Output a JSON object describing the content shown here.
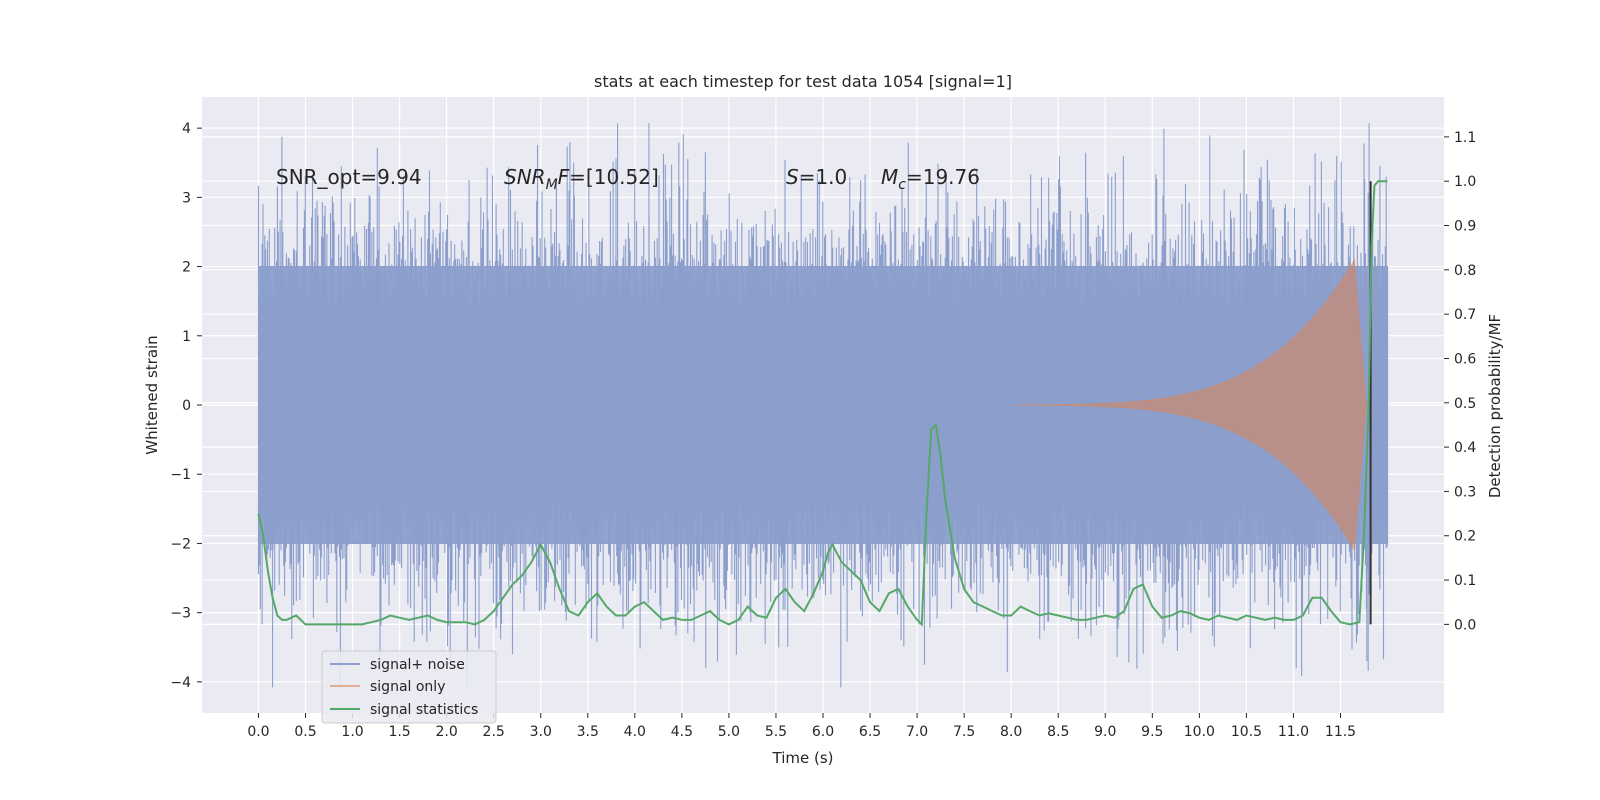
{
  "chart_data": {
    "type": "line",
    "title": "stats at each timestep for test data 1054 [signal=1]",
    "xlabel": "Time (s)",
    "ylabel_left": "Whitened strain",
    "ylabel_right": "Detection probability/MF",
    "xlim": [
      -0.6,
      12.6
    ],
    "ylim_left": [
      -4.45,
      4.45
    ],
    "ylim_right": [
      -0.2,
      1.19
    ],
    "x_ticks": [
      "0.0",
      "0.5",
      "1.0",
      "1.5",
      "2.0",
      "2.5",
      "3.0",
      "3.5",
      "4.0",
      "4.5",
      "5.0",
      "5.5",
      "6.0",
      "6.5",
      "7.0",
      "7.5",
      "8.0",
      "8.5",
      "9.0",
      "9.5",
      "10.0",
      "10.5",
      "11.0",
      "11.5"
    ],
    "y_left_ticks": [
      "4",
      "3",
      "2",
      "1",
      "0",
      "−1",
      "−2",
      "−3",
      "−4"
    ],
    "y_right_ticks": [
      "1.1",
      "1.0",
      "0.9",
      "0.8",
      "0.7",
      "0.6",
      "0.5",
      "0.4",
      "0.3",
      "0.2",
      "0.1",
      "0.0"
    ],
    "grid": true,
    "legend_placement": "lower-left",
    "colors": {
      "signal_noise": "#8c9fcc",
      "signal_only": "#dd8452",
      "signal_statistics": "#55a868",
      "marker_line": "#333333"
    },
    "series": [
      {
        "name": "signal+ noise",
        "axis": "left",
        "x_range": [
          0.0,
          12.0
        ],
        "typical_range": [
          -2.0,
          2.0
        ],
        "max": 4.07,
        "min": -4.08
      },
      {
        "name": "signal only",
        "axis": "left",
        "x_range": [
          8.0,
          11.8
        ],
        "peak_amplitude": 2.05,
        "peak_time": 11.65
      },
      {
        "name": "signal statistics",
        "axis": "right",
        "x": [
          0.0,
          0.05,
          0.1,
          0.15,
          0.2,
          0.25,
          0.3,
          0.4,
          0.5,
          0.6,
          0.7,
          0.8,
          0.9,
          1.0,
          1.1,
          1.2,
          1.3,
          1.4,
          1.5,
          1.6,
          1.7,
          1.8,
          1.9,
          2.0,
          2.1,
          2.2,
          2.3,
          2.4,
          2.5,
          2.6,
          2.7,
          2.8,
          2.9,
          3.0,
          3.05,
          3.1,
          3.2,
          3.3,
          3.4,
          3.5,
          3.6,
          3.7,
          3.8,
          3.9,
          4.0,
          4.1,
          4.2,
          4.3,
          4.4,
          4.5,
          4.6,
          4.7,
          4.8,
          4.9,
          5.0,
          5.1,
          5.2,
          5.3,
          5.4,
          5.5,
          5.6,
          5.7,
          5.8,
          5.9,
          6.0,
          6.05,
          6.1,
          6.2,
          6.3,
          6.4,
          6.5,
          6.6,
          6.7,
          6.8,
          6.9,
          7.0,
          7.05,
          7.1,
          7.15,
          7.2,
          7.25,
          7.3,
          7.4,
          7.5,
          7.6,
          7.7,
          7.8,
          7.9,
          8.0,
          8.1,
          8.2,
          8.3,
          8.4,
          8.5,
          8.6,
          8.7,
          8.8,
          8.9,
          9.0,
          9.1,
          9.2,
          9.3,
          9.4,
          9.5,
          9.6,
          9.7,
          9.8,
          9.9,
          10.0,
          10.1,
          10.2,
          10.3,
          10.4,
          10.5,
          10.6,
          10.7,
          10.8,
          10.9,
          11.0,
          11.1,
          11.2,
          11.3,
          11.4,
          11.5,
          11.6,
          11.7,
          11.75,
          11.8,
          11.83,
          11.86,
          11.9,
          11.95,
          12.0
        ],
        "y": [
          0.25,
          0.2,
          0.12,
          0.06,
          0.02,
          0.01,
          0.01,
          0.02,
          0.0,
          0.0,
          0.0,
          0.0,
          0.0,
          0.0,
          0.0,
          0.005,
          0.01,
          0.02,
          0.015,
          0.01,
          0.015,
          0.02,
          0.01,
          0.005,
          0.005,
          0.005,
          0.0,
          0.01,
          0.03,
          0.06,
          0.09,
          0.11,
          0.14,
          0.18,
          0.16,
          0.14,
          0.08,
          0.03,
          0.02,
          0.05,
          0.07,
          0.04,
          0.02,
          0.02,
          0.04,
          0.05,
          0.03,
          0.01,
          0.015,
          0.01,
          0.01,
          0.02,
          0.03,
          0.01,
          0.0,
          0.01,
          0.04,
          0.02,
          0.015,
          0.06,
          0.08,
          0.05,
          0.03,
          0.07,
          0.12,
          0.16,
          0.18,
          0.14,
          0.12,
          0.1,
          0.05,
          0.03,
          0.07,
          0.08,
          0.04,
          0.01,
          0.0,
          0.25,
          0.44,
          0.45,
          0.38,
          0.28,
          0.15,
          0.08,
          0.05,
          0.04,
          0.03,
          0.02,
          0.02,
          0.04,
          0.03,
          0.02,
          0.025,
          0.02,
          0.015,
          0.01,
          0.01,
          0.015,
          0.02,
          0.015,
          0.03,
          0.08,
          0.09,
          0.04,
          0.015,
          0.02,
          0.03,
          0.025,
          0.015,
          0.01,
          0.02,
          0.015,
          0.01,
          0.02,
          0.015,
          0.01,
          0.015,
          0.01,
          0.01,
          0.02,
          0.06,
          0.06,
          0.03,
          0.005,
          0.0,
          0.005,
          0.2,
          0.5,
          0.85,
          0.99,
          1.0,
          1.0,
          1.0
        ]
      }
    ],
    "vertical_marker_x": 11.82,
    "annotations": [
      {
        "id": "snr_opt",
        "text": "SNR_opt=9.94"
      },
      {
        "id": "snr_mf",
        "base": "SNR",
        "sub": "M",
        "rest": "F=[10.52]"
      },
      {
        "id": "s",
        "base": "S",
        "rest": "=1.0"
      },
      {
        "id": "mc",
        "base": "M",
        "sub": "c",
        "rest": "=19.76"
      }
    ]
  }
}
